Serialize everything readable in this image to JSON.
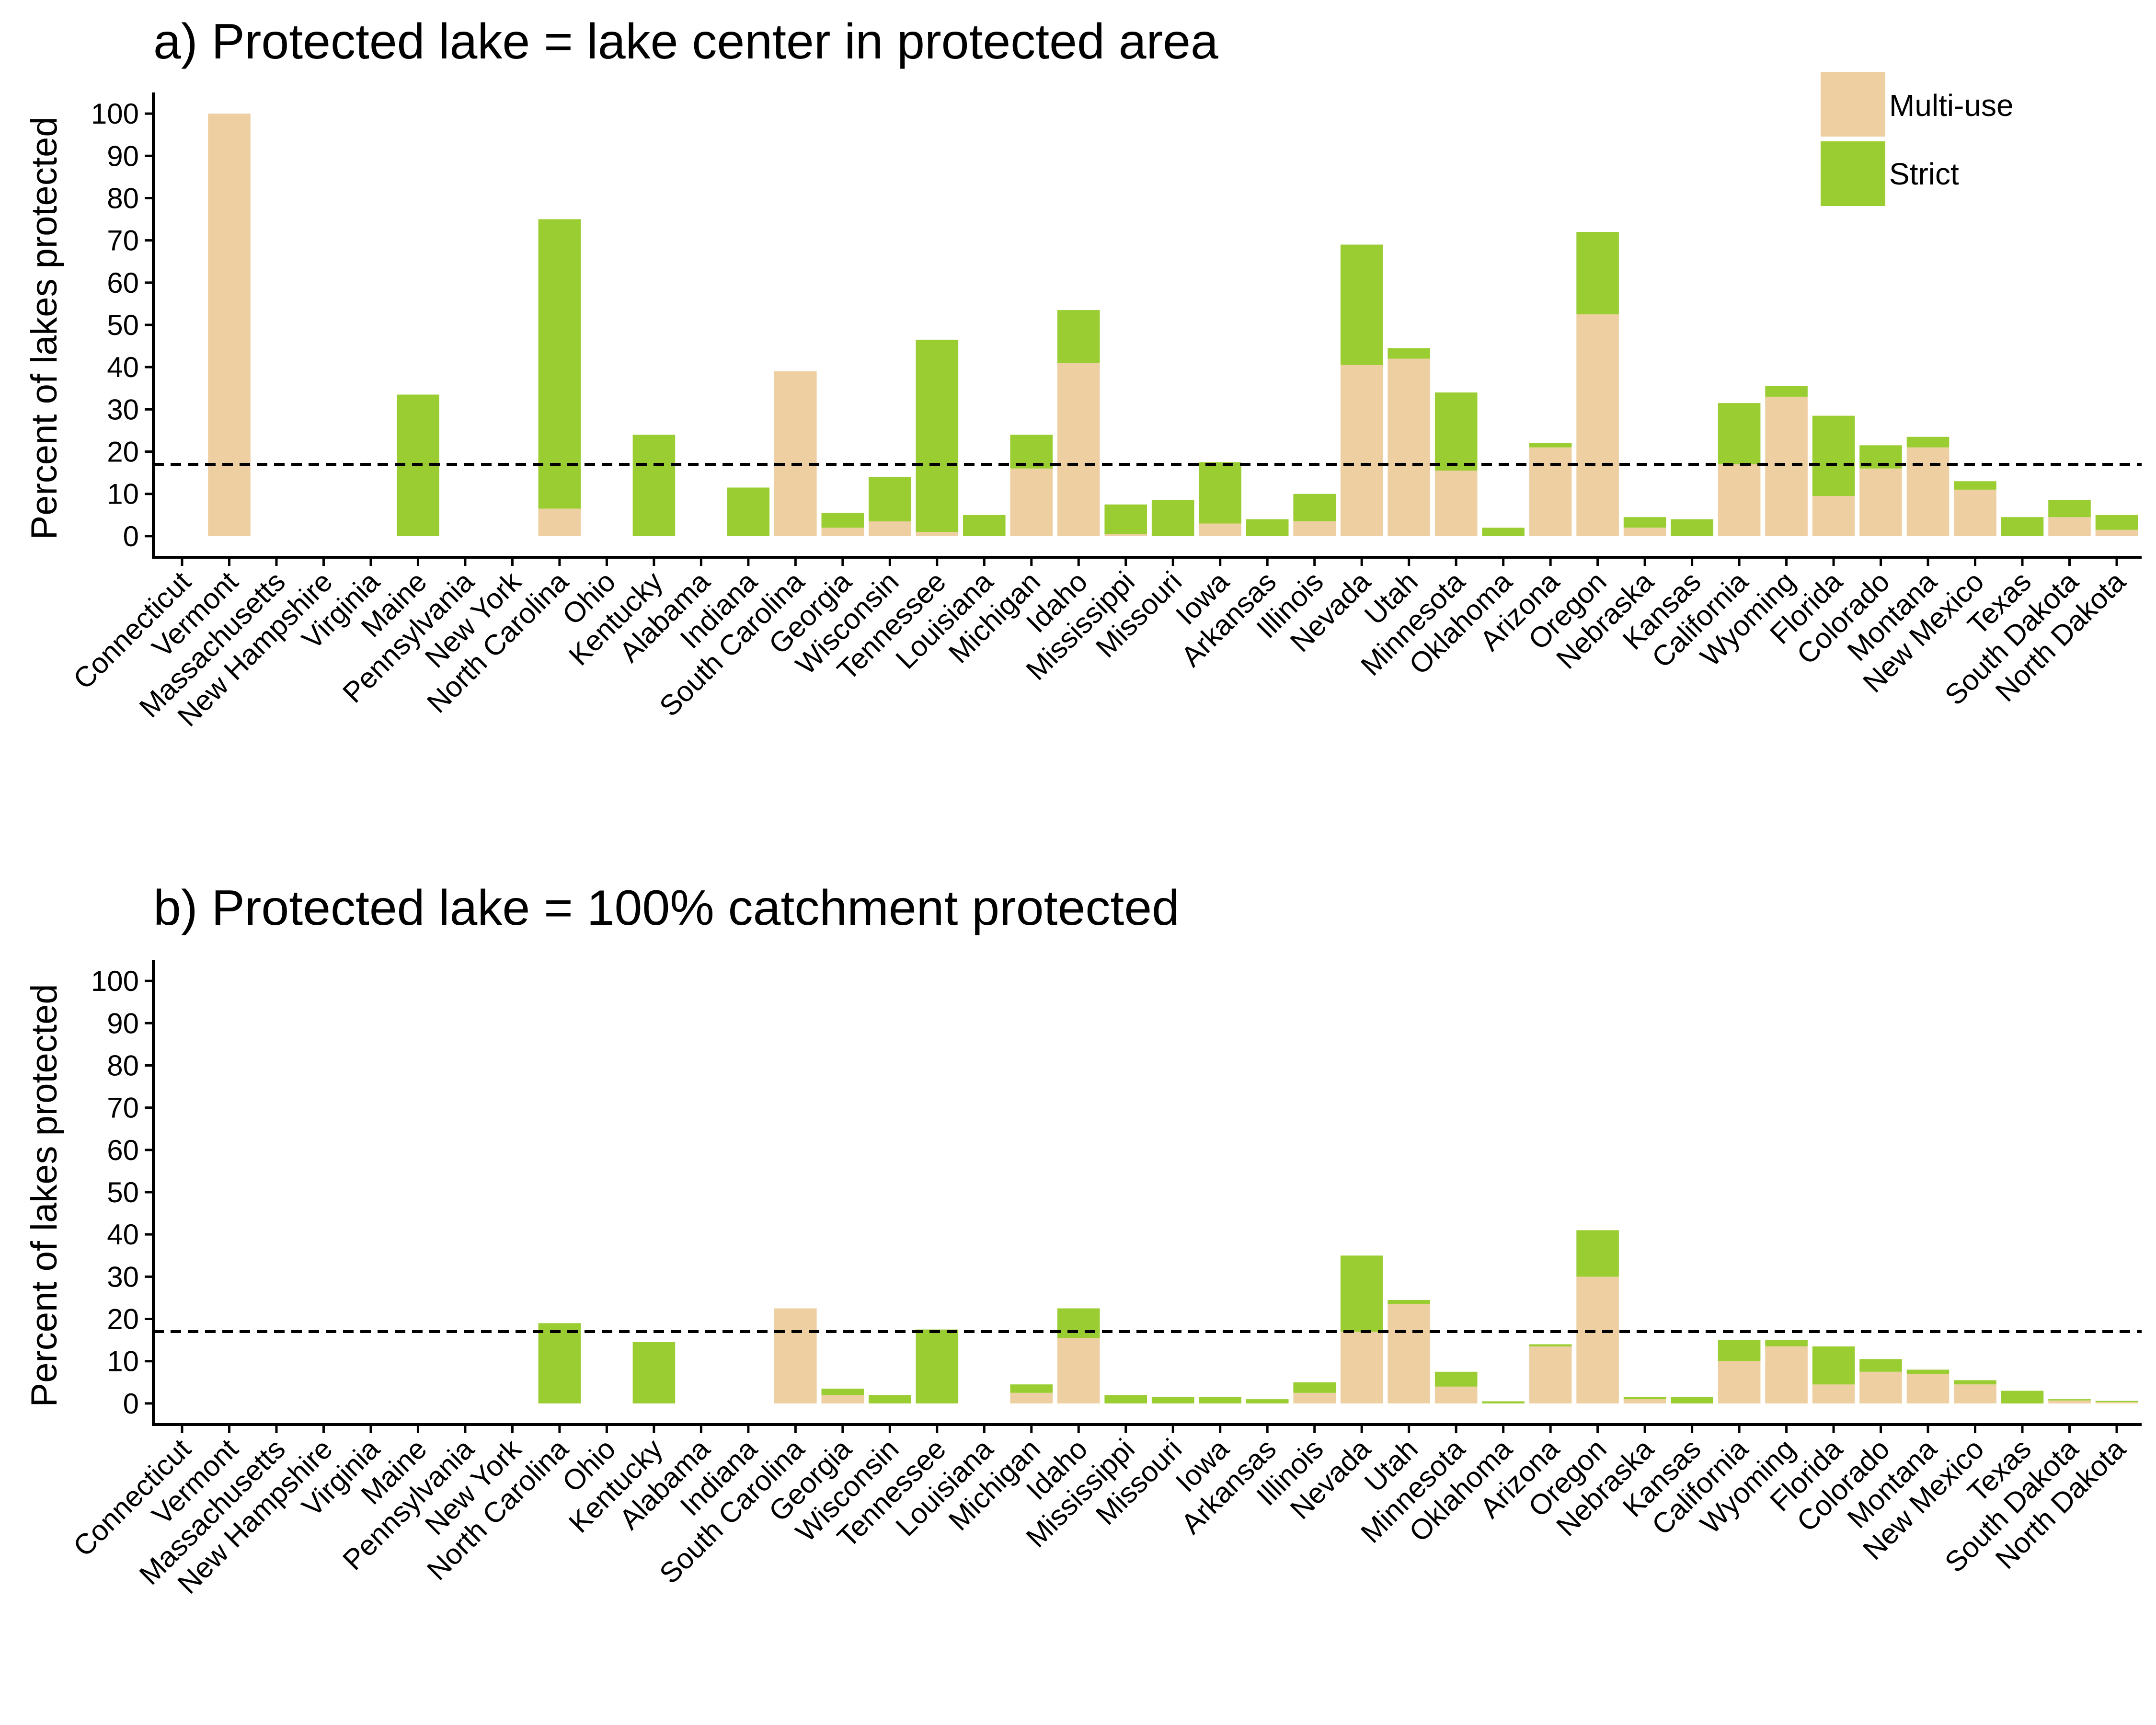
{
  "colors": {
    "multi_use": "#eecfa1",
    "strict": "#9acd32",
    "reference_line": "#000000"
  },
  "legend": {
    "position": "top-right",
    "items": [
      {
        "label": "Multi-use",
        "color": "#eecfa1"
      },
      {
        "label": "Strict",
        "color": "#9acd32"
      }
    ]
  },
  "chart_data": [
    {
      "type": "bar",
      "stacked": true,
      "title": "a) Protected lake = lake center in protected area",
      "ylabel": "Percent of lakes protected",
      "ylim": [
        -5,
        105
      ],
      "yticks": [
        "0",
        "10",
        "20",
        "30",
        "40",
        "50",
        "60",
        "70",
        "80",
        "90",
        "100"
      ],
      "reference_line": 17,
      "categories": [
        "Connecticut",
        "Vermont",
        "Massachusetts",
        "New Hampshire",
        "Virginia",
        "Maine",
        "Pennsylvania",
        "New York",
        "North Carolina",
        "Ohio",
        "Kentucky",
        "Alabama",
        "Indiana",
        "South Carolina",
        "Georgia",
        "Wisconsin",
        "Tennessee",
        "Louisiana",
        "Michigan",
        "Idaho",
        "Mississippi",
        "Missouri",
        "Iowa",
        "Arkansas",
        "Illinois",
        "Nevada",
        "Utah",
        "Minnesota",
        "Oklahoma",
        "Arizona",
        "Oregon",
        "Nebraska",
        "Kansas",
        "California",
        "Wyoming",
        "Florida",
        "Colorado",
        "Montana",
        "New Mexico",
        "Texas",
        "South Dakota",
        "North Dakota"
      ],
      "series": [
        {
          "name": "Multi-use",
          "values": [
            0,
            100,
            0,
            0,
            0,
            0,
            0,
            0,
            6.5,
            0,
            0,
            0,
            0,
            39,
            2,
            3.5,
            1,
            0,
            16,
            41,
            0.5,
            0,
            3,
            0,
            3.5,
            40.5,
            42,
            15.5,
            0,
            21,
            52.5,
            2,
            0,
            17,
            33,
            9.5,
            16,
            21,
            11,
            0,
            4.5,
            1.5
          ]
        },
        {
          "name": "Strict",
          "values": [
            0,
            0,
            0,
            0,
            0,
            33.5,
            0,
            0,
            68.5,
            0,
            24,
            0,
            11.5,
            0,
            3.5,
            10.5,
            45.5,
            5,
            8,
            12.5,
            7,
            8.5,
            14.5,
            4,
            6.5,
            28.5,
            2.5,
            18.5,
            2,
            1,
            19.5,
            2.5,
            4,
            14.5,
            2.5,
            19,
            5.5,
            2.5,
            2,
            4.5,
            4,
            3.5
          ]
        }
      ]
    },
    {
      "type": "bar",
      "stacked": true,
      "title": "b) Protected lake = 100% catchment protected",
      "ylabel": "Percent of lakes protected",
      "ylim": [
        -5,
        105
      ],
      "yticks": [
        "0",
        "10",
        "20",
        "30",
        "40",
        "50",
        "60",
        "70",
        "80",
        "90",
        "100"
      ],
      "reference_line": 17,
      "categories": [
        "Connecticut",
        "Vermont",
        "Massachusetts",
        "New Hampshire",
        "Virginia",
        "Maine",
        "Pennsylvania",
        "New York",
        "North Carolina",
        "Ohio",
        "Kentucky",
        "Alabama",
        "Indiana",
        "South Carolina",
        "Georgia",
        "Wisconsin",
        "Tennessee",
        "Louisiana",
        "Michigan",
        "Idaho",
        "Mississippi",
        "Missouri",
        "Iowa",
        "Arkansas",
        "Illinois",
        "Nevada",
        "Utah",
        "Minnesota",
        "Oklahoma",
        "Arizona",
        "Oregon",
        "Nebraska",
        "Kansas",
        "California",
        "Wyoming",
        "Florida",
        "Colorado",
        "Montana",
        "New Mexico",
        "Texas",
        "South Dakota",
        "North Dakota"
      ],
      "series": [
        {
          "name": "Multi-use",
          "values": [
            0,
            0,
            0,
            0,
            0,
            0,
            0,
            0,
            0,
            0,
            0,
            0,
            0,
            22.5,
            2,
            0,
            0,
            0,
            2.5,
            15.5,
            0,
            0,
            0,
            0,
            2.5,
            17,
            23.5,
            4,
            0,
            13.5,
            30,
            1,
            0,
            10,
            13.5,
            4.5,
            7.5,
            7,
            4.5,
            0,
            0.7,
            0.3
          ]
        },
        {
          "name": "Strict",
          "values": [
            0,
            0,
            0,
            0,
            0,
            0,
            0,
            0,
            19,
            0,
            14.5,
            0,
            0,
            0,
            1.5,
            2,
            17.5,
            0,
            2,
            7,
            2,
            1.5,
            1.5,
            1,
            2.5,
            18,
            1,
            3.5,
            0.5,
            0.5,
            11,
            0.5,
            1.5,
            5,
            1.5,
            9,
            3,
            1,
            1,
            3,
            0.3,
            0.3
          ]
        }
      ]
    }
  ]
}
